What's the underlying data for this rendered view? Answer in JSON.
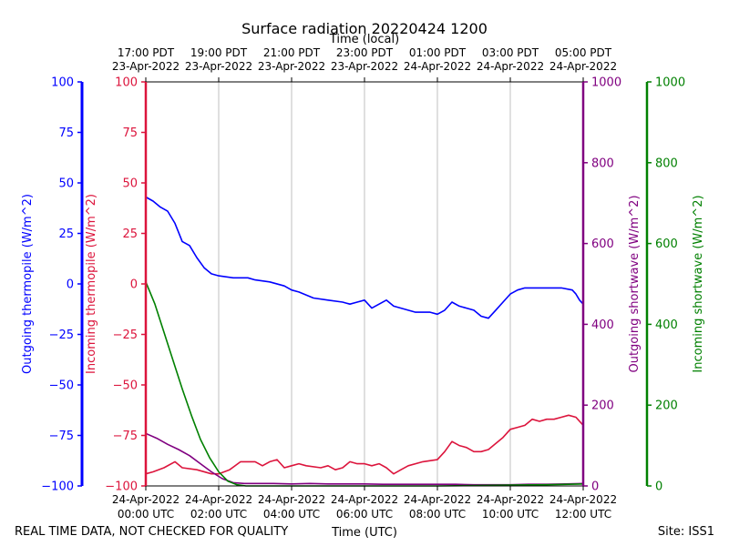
{
  "chart_data": {
    "type": "line",
    "title": "Surface radiation 20220424 1200",
    "top_axis_label": "Time (local)",
    "xlabel": "Time (UTC)",
    "footer_left": "REAL TIME DATA, NOT CHECKED FOR QUALITY",
    "footer_right": "Site: ISS1",
    "x_unit": "hours since 2022-04-24 00:00 UTC",
    "xlim": [
      0,
      12
    ],
    "bottom_ticks": [
      {
        "x": 0,
        "line1": "24-Apr-2022",
        "line2": "00:00 UTC"
      },
      {
        "x": 2,
        "line1": "24-Apr-2022",
        "line2": "02:00 UTC"
      },
      {
        "x": 4,
        "line1": "24-Apr-2022",
        "line2": "04:00 UTC"
      },
      {
        "x": 6,
        "line1": "24-Apr-2022",
        "line2": "06:00 UTC"
      },
      {
        "x": 8,
        "line1": "24-Apr-2022",
        "line2": "08:00 UTC"
      },
      {
        "x": 10,
        "line1": "24-Apr-2022",
        "line2": "10:00 UTC"
      },
      {
        "x": 12,
        "line1": "24-Apr-2022",
        "line2": "12:00 UTC"
      }
    ],
    "top_ticks": [
      {
        "x": 0,
        "line1": "17:00 PDT",
        "line2": "23-Apr-2022"
      },
      {
        "x": 2,
        "line1": "19:00 PDT",
        "line2": "23-Apr-2022"
      },
      {
        "x": 4,
        "line1": "21:00 PDT",
        "line2": "23-Apr-2022"
      },
      {
        "x": 6,
        "line1": "23:00 PDT",
        "line2": "23-Apr-2022"
      },
      {
        "x": 8,
        "line1": "01:00 PDT",
        "line2": "24-Apr-2022"
      },
      {
        "x": 10,
        "line1": "03:00 PDT",
        "line2": "24-Apr-2022"
      },
      {
        "x": 12,
        "line1": "05:00 PDT",
        "line2": "24-Apr-2022"
      }
    ],
    "grid": "vertical lines at each 2-hour tick",
    "axes": {
      "outgoing_thermopile": {
        "label": "Outgoing thermopile (W/m^2)",
        "color": "#0000ff",
        "ylim": [
          -100,
          100
        ],
        "ticks": [
          -100,
          -75,
          -50,
          -25,
          0,
          25,
          50,
          75,
          100
        ]
      },
      "incoming_thermopile": {
        "label": "Incoming thermopile (W/m^2)",
        "color": "#dc143c",
        "ylim": [
          -100,
          100
        ],
        "ticks": [
          -100,
          -75,
          -50,
          -25,
          0,
          25,
          50,
          75,
          100
        ]
      },
      "outgoing_shortwave": {
        "label": "Outgoing shortwave (W/m^2)",
        "color": "#800080",
        "ylim": [
          0,
          1000
        ],
        "ticks": [
          0,
          200,
          400,
          600,
          800,
          1000
        ]
      },
      "incoming_shortwave": {
        "label": "Incoming shortwave (W/m^2)",
        "color": "#008000",
        "ylim": [
          0,
          1000
        ],
        "ticks": [
          0,
          200,
          400,
          600,
          800,
          1000
        ]
      }
    },
    "series": [
      {
        "name": "Outgoing thermopile",
        "axis": "outgoing_thermopile",
        "color": "#0000ff",
        "points": [
          [
            0,
            43
          ],
          [
            0.2,
            41
          ],
          [
            0.4,
            38
          ],
          [
            0.6,
            36
          ],
          [
            0.8,
            30
          ],
          [
            1.0,
            21
          ],
          [
            1.2,
            19
          ],
          [
            1.4,
            13
          ],
          [
            1.6,
            8
          ],
          [
            1.8,
            5
          ],
          [
            2.0,
            4
          ],
          [
            2.4,
            3
          ],
          [
            2.8,
            3
          ],
          [
            3.0,
            2
          ],
          [
            3.4,
            1
          ],
          [
            3.8,
            -1
          ],
          [
            4.0,
            -3
          ],
          [
            4.2,
            -4
          ],
          [
            4.6,
            -7
          ],
          [
            5.0,
            -8
          ],
          [
            5.4,
            -9
          ],
          [
            5.6,
            -10
          ],
          [
            5.8,
            -9
          ],
          [
            6.0,
            -8
          ],
          [
            6.2,
            -12
          ],
          [
            6.4,
            -10
          ],
          [
            6.6,
            -8
          ],
          [
            6.8,
            -11
          ],
          [
            7.0,
            -12
          ],
          [
            7.4,
            -14
          ],
          [
            7.8,
            -14
          ],
          [
            8.0,
            -15
          ],
          [
            8.2,
            -13
          ],
          [
            8.4,
            -9
          ],
          [
            8.6,
            -11
          ],
          [
            8.8,
            -12
          ],
          [
            9.0,
            -13
          ],
          [
            9.2,
            -16
          ],
          [
            9.4,
            -17
          ],
          [
            9.6,
            -13
          ],
          [
            9.8,
            -9
          ],
          [
            10.0,
            -5
          ],
          [
            10.2,
            -3
          ],
          [
            10.4,
            -2
          ],
          [
            10.6,
            -2
          ],
          [
            11.0,
            -2
          ],
          [
            11.4,
            -2
          ],
          [
            11.7,
            -3
          ],
          [
            11.8,
            -5
          ],
          [
            11.9,
            -8
          ],
          [
            12.0,
            -10
          ]
        ]
      },
      {
        "name": "Incoming thermopile",
        "axis": "incoming_thermopile",
        "color": "#dc143c",
        "points": [
          [
            0,
            -94
          ],
          [
            0.2,
            -93
          ],
          [
            0.5,
            -91
          ],
          [
            0.8,
            -88
          ],
          [
            1.0,
            -91
          ],
          [
            1.4,
            -92
          ],
          [
            1.8,
            -94
          ],
          [
            2.0,
            -94
          ],
          [
            2.3,
            -92
          ],
          [
            2.6,
            -88
          ],
          [
            3.0,
            -88
          ],
          [
            3.2,
            -90
          ],
          [
            3.4,
            -88
          ],
          [
            3.6,
            -87
          ],
          [
            3.8,
            -91
          ],
          [
            4.0,
            -90
          ],
          [
            4.2,
            -89
          ],
          [
            4.4,
            -90
          ],
          [
            4.8,
            -91
          ],
          [
            5.0,
            -90
          ],
          [
            5.2,
            -92
          ],
          [
            5.4,
            -91
          ],
          [
            5.6,
            -88
          ],
          [
            5.8,
            -89
          ],
          [
            6.0,
            -89
          ],
          [
            6.2,
            -90
          ],
          [
            6.4,
            -89
          ],
          [
            6.6,
            -91
          ],
          [
            6.8,
            -94
          ],
          [
            7.0,
            -92
          ],
          [
            7.2,
            -90
          ],
          [
            7.6,
            -88
          ],
          [
            8.0,
            -87
          ],
          [
            8.2,
            -83
          ],
          [
            8.4,
            -78
          ],
          [
            8.6,
            -80
          ],
          [
            8.8,
            -81
          ],
          [
            9.0,
            -83
          ],
          [
            9.2,
            -83
          ],
          [
            9.4,
            -82
          ],
          [
            9.6,
            -79
          ],
          [
            9.8,
            -76
          ],
          [
            10.0,
            -72
          ],
          [
            10.2,
            -71
          ],
          [
            10.4,
            -70
          ],
          [
            10.6,
            -67
          ],
          [
            10.8,
            -68
          ],
          [
            11.0,
            -67
          ],
          [
            11.2,
            -67
          ],
          [
            11.4,
            -66
          ],
          [
            11.6,
            -65
          ],
          [
            11.8,
            -66
          ],
          [
            12.0,
            -70
          ]
        ]
      },
      {
        "name": "Outgoing shortwave",
        "axis": "outgoing_shortwave",
        "color": "#800080",
        "points": [
          [
            0,
            130
          ],
          [
            0.3,
            118
          ],
          [
            0.6,
            103
          ],
          [
            0.9,
            90
          ],
          [
            1.2,
            75
          ],
          [
            1.5,
            55
          ],
          [
            1.8,
            35
          ],
          [
            2.1,
            18
          ],
          [
            2.4,
            8
          ],
          [
            2.7,
            6
          ],
          [
            3.0,
            6
          ],
          [
            3.5,
            6
          ],
          [
            4.0,
            5
          ],
          [
            4.5,
            6
          ],
          [
            5.0,
            5
          ],
          [
            5.5,
            5
          ],
          [
            6.0,
            5
          ],
          [
            6.5,
            4
          ],
          [
            7.0,
            4
          ],
          [
            7.5,
            4
          ],
          [
            8.0,
            4
          ],
          [
            8.5,
            4
          ],
          [
            9.0,
            3
          ],
          [
            9.5,
            3
          ],
          [
            10.0,
            3
          ],
          [
            10.5,
            4
          ],
          [
            11.0,
            4
          ],
          [
            11.5,
            5
          ],
          [
            12.0,
            6
          ]
        ]
      },
      {
        "name": "Incoming shortwave",
        "axis": "incoming_shortwave",
        "color": "#008000",
        "points": [
          [
            0,
            505
          ],
          [
            0.25,
            450
          ],
          [
            0.5,
            380
          ],
          [
            0.75,
            310
          ],
          [
            1.0,
            240
          ],
          [
            1.25,
            175
          ],
          [
            1.5,
            115
          ],
          [
            1.75,
            70
          ],
          [
            2.0,
            35
          ],
          [
            2.25,
            12
          ],
          [
            2.5,
            3
          ],
          [
            2.75,
            0
          ],
          [
            3.0,
            0
          ],
          [
            4.0,
            0
          ],
          [
            5.0,
            0
          ],
          [
            6.0,
            0
          ],
          [
            7.0,
            0
          ],
          [
            8.0,
            0
          ],
          [
            9.0,
            1
          ],
          [
            10.0,
            2
          ],
          [
            11.0,
            3
          ],
          [
            12.0,
            5
          ]
        ]
      }
    ]
  }
}
